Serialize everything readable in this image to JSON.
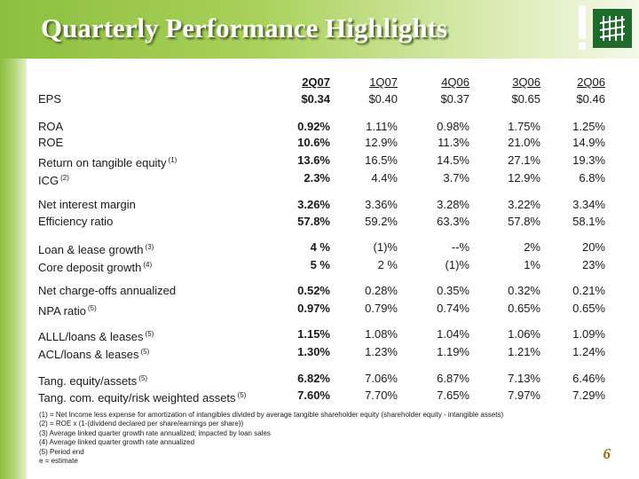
{
  "title": "Quarterly Performance Highlights",
  "colors": {
    "header_green": "#8cbf3f",
    "logo_green": "#1e6b2c",
    "page_number": "#9b6a10"
  },
  "logo": {
    "icon": "bank-logo-icon"
  },
  "table": {
    "columns": [
      "2Q07",
      "1Q07",
      "4Q06",
      "3Q06",
      "2Q06"
    ],
    "rows": [
      {
        "label": "EPS",
        "sup": "",
        "values": [
          "$0.34",
          "$0.40",
          "$0.37",
          "$0.65",
          "$0.46"
        ]
      },
      {
        "label": "ROA",
        "sup": "",
        "values": [
          "0.92%",
          "1.11%",
          "0.98%",
          "1.75%",
          "1.25%"
        ]
      },
      {
        "label": "ROE",
        "sup": "",
        "values": [
          "10.6%",
          "12.9%",
          "11.3%",
          "21.0%",
          "14.9%"
        ]
      },
      {
        "label": "Return on tangible equity",
        "sup": "(1)",
        "values": [
          "13.6%",
          "16.5%",
          "14.5%",
          "27.1%",
          "19.3%"
        ]
      },
      {
        "label": "ICG",
        "sup": "(2)",
        "values": [
          "2.3%",
          "4.4%",
          "3.7%",
          "12.9%",
          "6.8%"
        ]
      },
      {
        "label": "Net interest margin",
        "sup": "",
        "values": [
          "3.26%",
          "3.36%",
          "3.28%",
          "3.22%",
          "3.34%"
        ]
      },
      {
        "label": "Efficiency ratio",
        "sup": "",
        "values": [
          "57.8%",
          "59.2%",
          "63.3%",
          "57.8%",
          "58.1%"
        ]
      },
      {
        "label": "Loan & lease growth",
        "sup": "(3)",
        "values": [
          "4 %",
          "(1)%",
          "--%",
          "2%",
          "20%"
        ]
      },
      {
        "label": "Core deposit growth",
        "sup": "(4)",
        "values": [
          "5 %",
          "2 %",
          "(1)%",
          "1%",
          "23%"
        ]
      },
      {
        "label": "Net charge-offs annualized",
        "sup": "",
        "values": [
          "0.52%",
          "0.28%",
          "0.35%",
          "0.32%",
          "0.21%"
        ]
      },
      {
        "label": "NPA ratio",
        "sup": "(5)",
        "values": [
          "0.97%",
          "0.79%",
          "0.74%",
          "0.65%",
          "0.65%"
        ]
      },
      {
        "label": "ALLL/loans & leases",
        "sup": "(5)",
        "values": [
          "1.15%",
          "1.08%",
          "1.04%",
          "1.06%",
          "1.09%"
        ]
      },
      {
        "label": "ACL/loans & leases",
        "sup": "(5)",
        "values": [
          "1.30%",
          "1.23%",
          "1.19%",
          "1.21%",
          "1.24%"
        ]
      },
      {
        "label": "Tang. equity/assets",
        "sup": "(5)",
        "values": [
          "6.82%",
          "7.06%",
          "6.87%",
          "7.13%",
          "6.46%"
        ]
      },
      {
        "label": "Tang. com. equity/risk weighted assets",
        "sup": "(5)",
        "values": [
          "7.60%",
          "7.70%",
          "7.65%",
          "7.97%",
          "7.29%"
        ]
      }
    ]
  },
  "footnotes": [
    "(1) = Net Income less expense for amortization of intangibles divided by average tangible shareholder equity (shareholder equity - intangible assets)",
    "(2) = ROE x (1-(dividend declared per share/earnings per share))",
    "(3) Average linked quarter growth rate annualized; impacted by loan sales",
    "(4) Average linked quarter growth rate annualized",
    "(5) Period end",
    " e = estimate"
  ],
  "page_number": "6"
}
